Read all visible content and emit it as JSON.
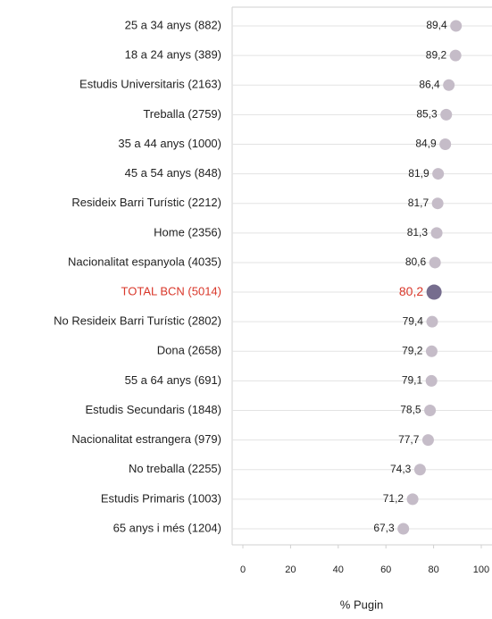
{
  "chart_data": {
    "type": "dot",
    "categories": [
      "25 a 34 anys (882)",
      "18 a 24 anys (389)",
      "Estudis Universitaris (2163)",
      "Treballa (2759)",
      "35 a 44 anys (1000)",
      "45 a 54 anys (848)",
      "Resideix Barri Turístic (2212)",
      "Home (2356)",
      "Nacionalitat espanyola (4035)",
      "TOTAL BCN (5014)",
      "No Resideix Barri Turístic (2802)",
      "Dona (2658)",
      "55 a 64 anys (691)",
      "Estudis Secundaris (1848)",
      "Nacionalitat estrangera (979)",
      "No treballa (2255)",
      "Estudis Primaris (1003)",
      "65 anys i més (1204)"
    ],
    "values": [
      89.4,
      89.2,
      86.4,
      85.3,
      84.9,
      81.9,
      81.7,
      81.3,
      80.6,
      80.2,
      79.4,
      79.2,
      79.1,
      78.5,
      77.7,
      74.3,
      71.2,
      67.3
    ],
    "value_labels": [
      "89,4",
      "89,2",
      "86,4",
      "85,3",
      "84,9",
      "81,9",
      "81,7",
      "81,3",
      "80,6",
      "80,2",
      "79,4",
      "79,2",
      "79,1",
      "78,5",
      "77,7",
      "74,3",
      "71,2",
      "67,3"
    ],
    "colors": [
      "#c5bcc8",
      "#c5bcc8",
      "#c5bcc8",
      "#c5bcc8",
      "#c5bcc8",
      "#c5bcc8",
      "#c5bcc8",
      "#c5bcc8",
      "#c5bcc8",
      "#766d8e",
      "#c5bcc8",
      "#c5bcc8",
      "#c5bcc8",
      "#c5bcc8",
      "#c5bcc8",
      "#c5bcc8",
      "#c5bcc8",
      "#c5bcc8"
    ],
    "label_colors": [
      "#222222",
      "#222222",
      "#222222",
      "#222222",
      "#222222",
      "#222222",
      "#222222",
      "#222222",
      "#222222",
      "#d9372a",
      "#222222",
      "#222222",
      "#222222",
      "#222222",
      "#222222",
      "#222222",
      "#222222",
      "#222222"
    ],
    "x_label": "% Pugin",
    "xlim": [
      -4.5,
      104.5
    ],
    "xticks": [
      0,
      20,
      40,
      60,
      80,
      100
    ],
    "grid": true
  }
}
